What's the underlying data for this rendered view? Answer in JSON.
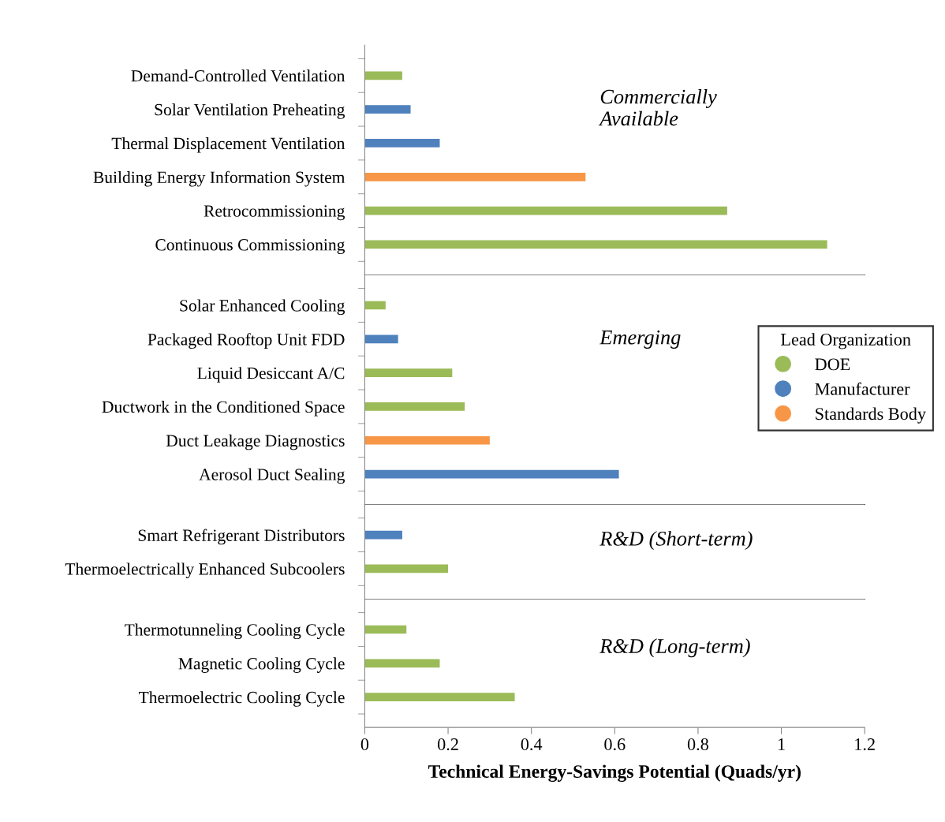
{
  "chart_data": [
    {
      "type": "bar",
      "orientation": "horizontal",
      "categories": [
        "Demand-Controlled Ventilation",
        "Solar Ventilation Preheating",
        "Thermal Displacement Ventilation",
        "Building Energy Information System",
        "Retrocommissioning",
        "Continuous Commissioning"
      ],
      "series": [
        {
          "color": "#9bbb59",
          "values": [
            0.09,
            null,
            null,
            null,
            0.87,
            1.11
          ]
        },
        {
          "color": "#4f81bd",
          "values": [
            null,
            0.11,
            0.18,
            null,
            null,
            null
          ]
        },
        {
          "color": "#f79646",
          "values": [
            null,
            null,
            null,
            0.53,
            null,
            null
          ]
        }
      ],
      "xlim": [
        0,
        1.2
      ],
      "xticks": [
        0,
        0.2,
        0.4,
        0.6,
        0.8,
        1,
        1.2
      ],
      "tick_labels": "y",
      "annotations": [
        "Commercially\nAvailable"
      ]
    },
    {
      "type": "bar",
      "orientation": "horizontal",
      "categories": [
        "Solar Enhanced Cooling",
        "Packaged Rooftop Unit FDD",
        "Liquid Desiccant A/C",
        "Ductwork in the Conditioned Space",
        "Duct Leakage Diagnostics",
        "Aerosol Duct Sealing"
      ],
      "series": [
        {
          "name": "DOE",
          "color": "#9bbb59",
          "values": [
            0.05,
            null,
            0.21,
            0.24,
            null,
            null
          ]
        },
        {
          "name": "Manufacturer",
          "color": "#4f81bd",
          "values": [
            null,
            0.08,
            null,
            null,
            null,
            0.61
          ]
        },
        {
          "name": "Standards Body",
          "color": "#f79646",
          "values": [
            null,
            null,
            null,
            null,
            0.3,
            null
          ]
        }
      ],
      "xlim": [
        0,
        1.2
      ],
      "xticks": [
        0,
        0.2,
        0.4,
        0.6,
        0.8,
        1,
        1.2
      ],
      "tick_labels": "y",
      "annotations": [
        "Emerging"
      ],
      "legend": "right",
      "legend_title": "Lead Organization"
    },
    {
      "type": "bar",
      "orientation": "horizontal",
      "categories": [
        "Smart Refrigerant Distributors",
        "Thermoelectrically Enhanced Subcoolers"
      ],
      "series": [
        {
          "color": "#9bbb59",
          "values": [
            null,
            0.2
          ]
        },
        {
          "color": "#4f81bd",
          "values": [
            0.09,
            null
          ]
        }
      ],
      "xlim": [
        0,
        1.2
      ],
      "xticks": [
        0,
        0.2,
        0.4,
        0.6,
        0.8,
        1,
        1.2
      ],
      "tick_labels": "y",
      "annotations": [
        "R&D (Short-term)"
      ]
    },
    {
      "type": "bar",
      "orientation": "horizontal",
      "categories": [
        "Thermotunneling Cooling Cycle",
        "Magnetic Cooling Cycle",
        "Thermoelectric Cooling Cycle"
      ],
      "series": [
        {
          "color": "#9bbb59",
          "values": [
            0.1,
            0.18,
            0.36
          ]
        }
      ],
      "xlim": [
        0,
        1.2
      ],
      "xticks": [
        0,
        0.2,
        0.4,
        0.6,
        0.8,
        1,
        1.2
      ],
      "annotations": [
        "R&D (Long-term)"
      ],
      "xlabel": "Technical Energy-Savings Potential (Quads/yr)"
    }
  ]
}
